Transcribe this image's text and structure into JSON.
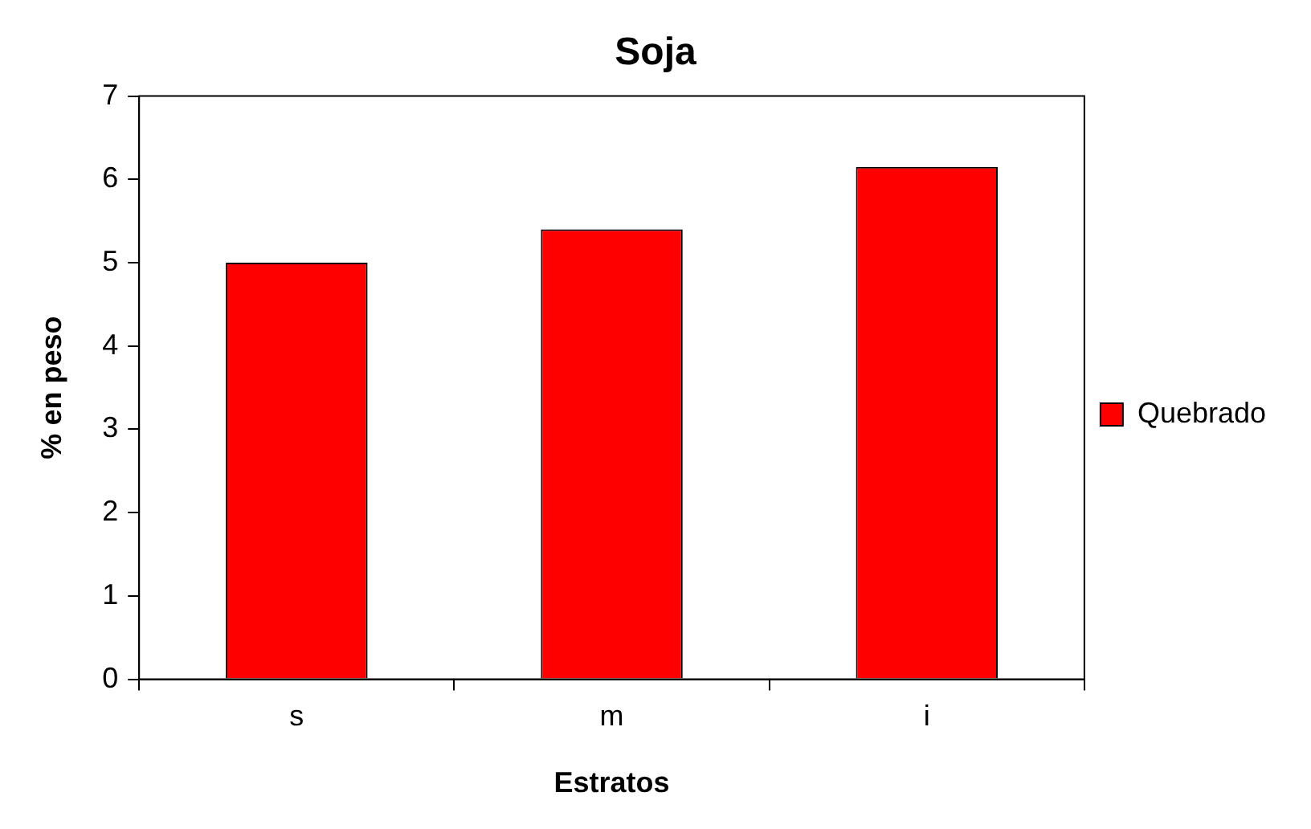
{
  "chart_data": {
    "type": "bar",
    "title": "Soja",
    "xlabel": "Estratos",
    "ylabel": "% en peso",
    "categories": [
      "s",
      "m",
      "i"
    ],
    "series": [
      {
        "name": "Quebrado",
        "color": "#ff0000",
        "values": [
          5.0,
          5.4,
          6.15
        ]
      }
    ],
    "ylim": [
      0,
      7
    ],
    "yticks": [
      0,
      1,
      2,
      3,
      4,
      5,
      6,
      7
    ],
    "grid": false,
    "legend": "right"
  }
}
